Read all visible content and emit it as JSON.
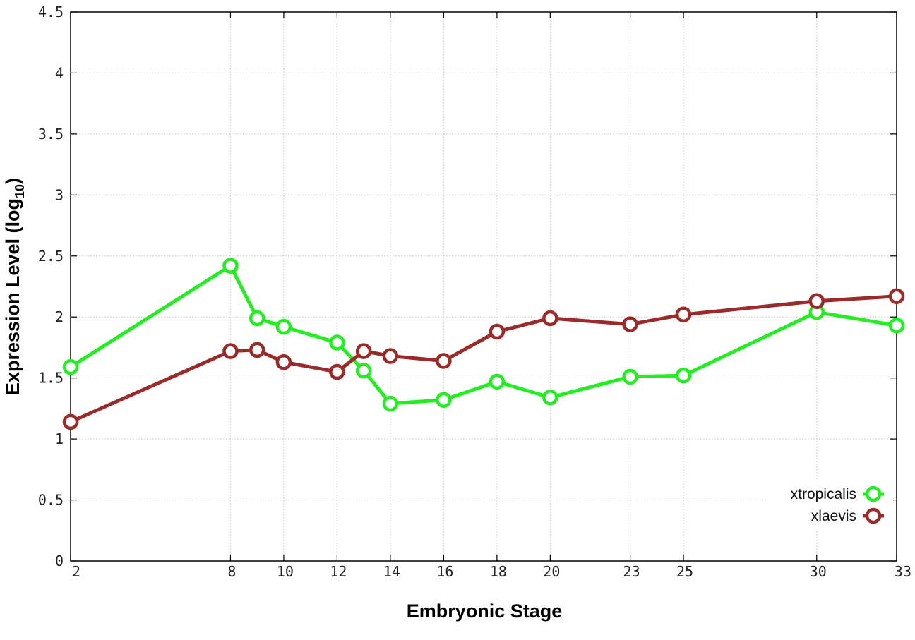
{
  "chart_data": {
    "type": "line",
    "xlabel": "Embryonic Stage",
    "ylabel": "Expression Level (log",
    "ylabel_sub": "10",
    "ylabel_close": ")",
    "x": [
      2,
      8,
      9,
      10,
      12,
      13,
      14,
      16,
      18,
      20,
      23,
      25,
      30,
      33
    ],
    "x_ticks": [
      "2",
      "8",
      "10",
      "12",
      "14",
      "16",
      "18",
      "20",
      "23",
      "25",
      "30",
      "33"
    ],
    "xlim": [
      2,
      33
    ],
    "ylim": [
      0,
      4.5
    ],
    "y_ticks": [
      "0",
      "0.5",
      "1",
      "1.5",
      "2",
      "2.5",
      "3",
      "3.5",
      "4",
      "4.5"
    ],
    "grid": true,
    "legend_position": "bottom-right",
    "series": [
      {
        "name": "xtropicalis",
        "color": "#22ee22",
        "values": [
          1.59,
          2.42,
          1.99,
          1.92,
          1.79,
          1.56,
          1.29,
          1.32,
          1.47,
          1.34,
          1.51,
          1.52,
          2.04,
          1.93
        ]
      },
      {
        "name": "xlaevis",
        "color": "#9b2a2a",
        "values": [
          1.14,
          1.72,
          1.73,
          1.63,
          1.55,
          1.72,
          1.68,
          1.64,
          1.88,
          1.99,
          1.94,
          2.02,
          2.13,
          2.17
        ]
      }
    ]
  }
}
